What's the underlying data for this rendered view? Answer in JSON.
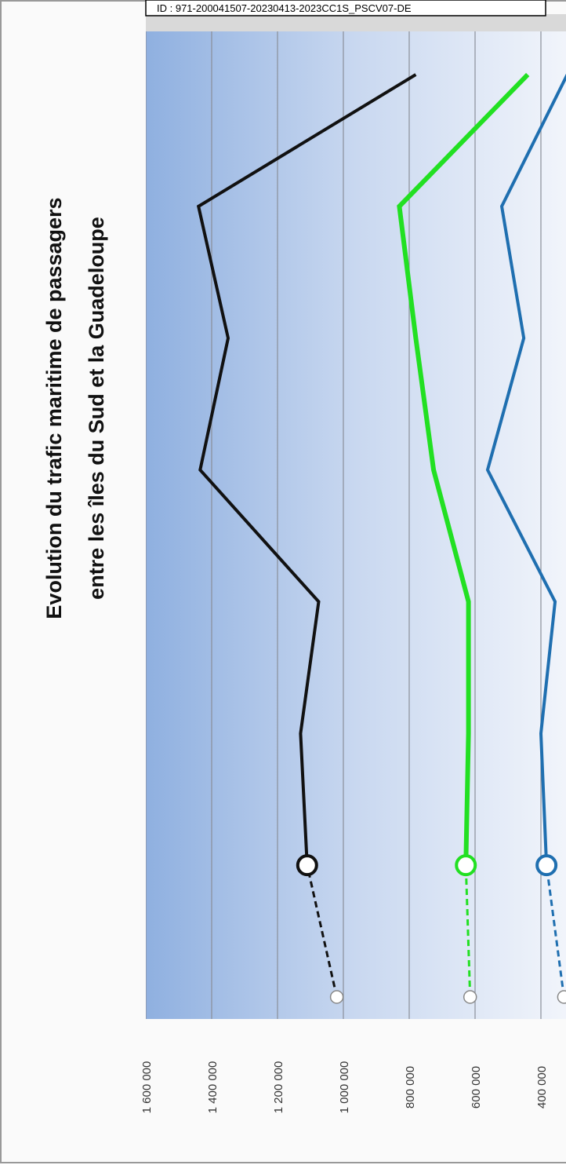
{
  "stamp": "ID : 971-200041507-20230413-2023CC1S_PSCV07-DE",
  "chart_data": {
    "type": "line",
    "title": "Evolution du trafic maritime de passagers",
    "subtitle": "entre les îles du Sud et la Guadeloupe",
    "categories": [
      null,
      null,
      null,
      null,
      null,
      null,
      null,
      null
    ],
    "series": [
      {
        "name": null,
        "color": "#111111",
        "values": [
          1020000,
          1110000,
          1130000,
          1075000,
          1435000,
          1350000,
          1440000,
          780000
        ]
      },
      {
        "name": null,
        "color": "#22e022",
        "values": [
          615000,
          628000,
          620000,
          620000,
          726000,
          780000,
          830000,
          440000
        ]
      },
      {
        "name": null,
        "color": "#1f6fb0",
        "values": [
          330000,
          383000,
          400000,
          357000,
          562000,
          452000,
          519000,
          320000
        ]
      }
    ],
    "ylim": [
      300000,
      1600000
    ],
    "yticks": [
      {
        "value": 1600000,
        "label": "1 600 000"
      },
      {
        "value": 1400000,
        "label": "1 400 000"
      },
      {
        "value": 1200000,
        "label": "1 200 000"
      },
      {
        "value": 1000000,
        "label": "1 000 000"
      },
      {
        "value": 800000,
        "label": "800 000"
      },
      {
        "value": 600000,
        "label": "600 000"
      },
      {
        "value": 400000,
        "label": "400 000"
      }
    ],
    "grid": true
  }
}
